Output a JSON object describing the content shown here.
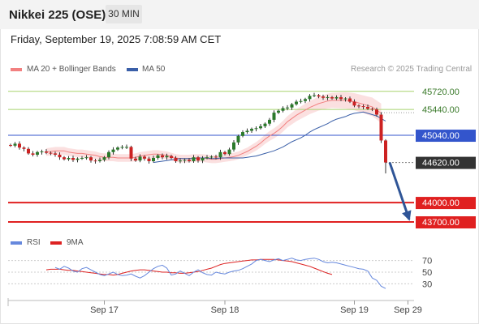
{
  "header": {
    "title": "Nikkei 225 (OSE)",
    "timeframe": "30 MIN"
  },
  "datetime": "Friday, September 19, 2025 7:08:59 AM CET",
  "legend": {
    "ma20": "MA 20 + Bollinger Bands",
    "ma50": "MA 50",
    "credit": "Research © 2025 Trading Central"
  },
  "colors": {
    "candle_up": "#2b7a2b",
    "candle_down": "#cc2222",
    "ma20": "#f28080",
    "ma50": "#3a5fa8",
    "bollinger_fill": "#fbe0e0",
    "resistance": "#a8d46f",
    "pivot": "#3355cc",
    "support": "#e02020",
    "last_price": "#333333",
    "rsi": "#6688dd",
    "rsi_ma": "#dd2222",
    "arrow": "#2f5597"
  },
  "price_levels": [
    {
      "label": "45720.00",
      "value": 45720,
      "kind": "resistance"
    },
    {
      "label": "45440.00",
      "value": 45440,
      "kind": "resistance"
    },
    {
      "label": "45040.00",
      "value": 45040,
      "kind": "pivot"
    },
    {
      "label": "44620.00",
      "value": 44620,
      "kind": "last"
    },
    {
      "label": "44000.00",
      "value": 44000,
      "kind": "support"
    },
    {
      "label": "43700.00",
      "value": 43700,
      "kind": "support"
    }
  ],
  "rsi_panel": {
    "legend_rsi": "RSI",
    "legend_ma": "9MA",
    "ticks": [
      {
        "label": "70",
        "value": 70
      },
      {
        "label": "50",
        "value": 50
      },
      {
        "label": "30",
        "value": 30
      }
    ]
  },
  "x_axis": {
    "ticks": [
      {
        "label": "Sep 17",
        "index": 21
      },
      {
        "label": "Sep 18",
        "index": 48
      },
      {
        "label": "Sep 19",
        "index": 77
      },
      {
        "label": "Sep 29",
        "index": 89
      }
    ]
  },
  "chart_data": {
    "type": "candlestick",
    "title": "Nikkei 225 (OSE)",
    "timeframe": "30 MIN",
    "ylim": [
      43550,
      45980
    ],
    "series": [
      {
        "name": "Price (close)",
        "values": [
          44880,
          44910,
          44850,
          44830,
          44760,
          44740,
          44780,
          44790,
          44770,
          44760,
          44740,
          44700,
          44670,
          44690,
          44660,
          44680,
          44690,
          44700,
          44650,
          44640,
          44660,
          44700,
          44780,
          44820,
          44850,
          44860,
          44860,
          44680,
          44650,
          44710,
          44680,
          44640,
          44690,
          44730,
          44700,
          44720,
          44690,
          44640,
          44650,
          44660,
          44640,
          44700,
          44650,
          44690,
          44700,
          44710,
          44700,
          44780,
          44750,
          44820,
          44930,
          45030,
          45090,
          45110,
          45140,
          45150,
          45180,
          45220,
          45280,
          45390,
          45420,
          45460,
          45470,
          45520,
          45560,
          45570,
          45600,
          45650,
          45660,
          45640,
          45620,
          45630,
          45610,
          45630,
          45600,
          45610,
          45560,
          45500,
          45490,
          45480,
          45450,
          45440,
          45360,
          44960,
          44620
        ]
      },
      {
        "name": "MA 20",
        "values": [
          44780,
          44790,
          44800,
          44800,
          44800,
          44780,
          44770,
          44760,
          44760,
          44750,
          44740,
          44730,
          44710,
          44700,
          44700,
          44700,
          44690,
          44690,
          44690,
          44690,
          44700,
          44720,
          44730,
          44740,
          44750,
          44750,
          44740,
          44730,
          44710,
          44690,
          44680,
          44680,
          44680,
          44690,
          44690,
          44690,
          44680,
          44670,
          44670,
          44680,
          44690,
          44700,
          44710,
          44730,
          44760,
          44790,
          44830,
          44870,
          44920,
          44980,
          45030,
          45070,
          45120,
          45180,
          45250,
          45300,
          45350,
          45390,
          45430,
          45470,
          45500,
          45530,
          45550,
          45570,
          45580,
          45580,
          45580,
          45580,
          45570,
          45560,
          45540,
          45520,
          45500,
          45480,
          45430,
          45380
        ]
      },
      {
        "name": "MA 50",
        "values": [
          44620,
          44630,
          44640,
          44650,
          44660,
          44670,
          44680,
          44680,
          44680,
          44680,
          44690,
          44690,
          44690,
          44680,
          44680,
          44690,
          44690,
          44690,
          44690,
          44690,
          44690,
          44700,
          44710,
          44720,
          44740,
          44760,
          44780,
          44800,
          44830,
          44860,
          44900,
          44940,
          44970,
          45000,
          45040,
          45090,
          45130,
          45160,
          45190,
          45220,
          45260,
          45290,
          45310,
          45330,
          45360,
          45380,
          45390,
          45400,
          45380,
          45360,
          45340,
          45300,
          45260
        ]
      },
      {
        "name": "RSI",
        "values": [
          58,
          55,
          60,
          57,
          52,
          50,
          56,
          58,
          54,
          50,
          46,
          44,
          47,
          50,
          46,
          44,
          45,
          47,
          43,
          40,
          44,
          50,
          56,
          60,
          62,
          57,
          45,
          47,
          52,
          48,
          44,
          50,
          54,
          49,
          46,
          45,
          50,
          48,
          47,
          50,
          52,
          53,
          56,
          60,
          64,
          70,
          72,
          70,
          68,
          71,
          73,
          70,
          72,
          74,
          71,
          70,
          72,
          73,
          74,
          72,
          68,
          66,
          67,
          66,
          64,
          62,
          60,
          58,
          56,
          55,
          52,
          40,
          36,
          26,
          22
        ]
      },
      {
        "name": "9MA",
        "values": [
          54,
          55,
          55,
          55,
          54,
          53,
          53,
          52,
          51,
          50,
          49,
          48,
          47,
          46,
          46,
          45,
          46,
          48,
          50,
          52,
          53,
          54,
          54,
          53,
          52,
          51,
          50,
          50,
          49,
          49,
          48,
          48,
          49,
          50,
          51,
          53,
          55,
          57,
          60,
          63,
          65,
          66,
          67,
          68,
          69,
          70,
          71,
          71,
          72,
          72,
          72,
          72,
          71,
          70,
          69,
          68,
          66,
          64,
          62,
          60,
          57,
          54,
          51,
          48,
          46
        ]
      }
    ],
    "forecast_arrow": {
      "from": 44620,
      "to": 43740
    },
    "xlabel": "",
    "ylabel": ""
  }
}
